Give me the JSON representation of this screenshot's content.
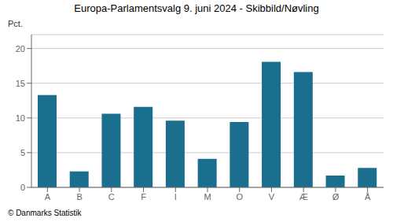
{
  "chart_data": {
    "type": "bar",
    "title": "Europa-Parlamentsvalg 9. juni 2024 - Skibbild/Nøvling",
    "ylabel": "Pct.",
    "footer": "© Danmarks Statistik",
    "categories": [
      "A",
      "B",
      "C",
      "F",
      "I",
      "M",
      "O",
      "V",
      "Æ",
      "Ø",
      "Å"
    ],
    "values": [
      13.3,
      2.3,
      10.6,
      11.6,
      9.6,
      4.1,
      9.4,
      18.1,
      16.6,
      1.7,
      2.8
    ],
    "color": "#1a6e8e",
    "ylim": [
      0,
      22
    ],
    "yticks": [
      0,
      5,
      10,
      15,
      20
    ],
    "grid": true
  }
}
